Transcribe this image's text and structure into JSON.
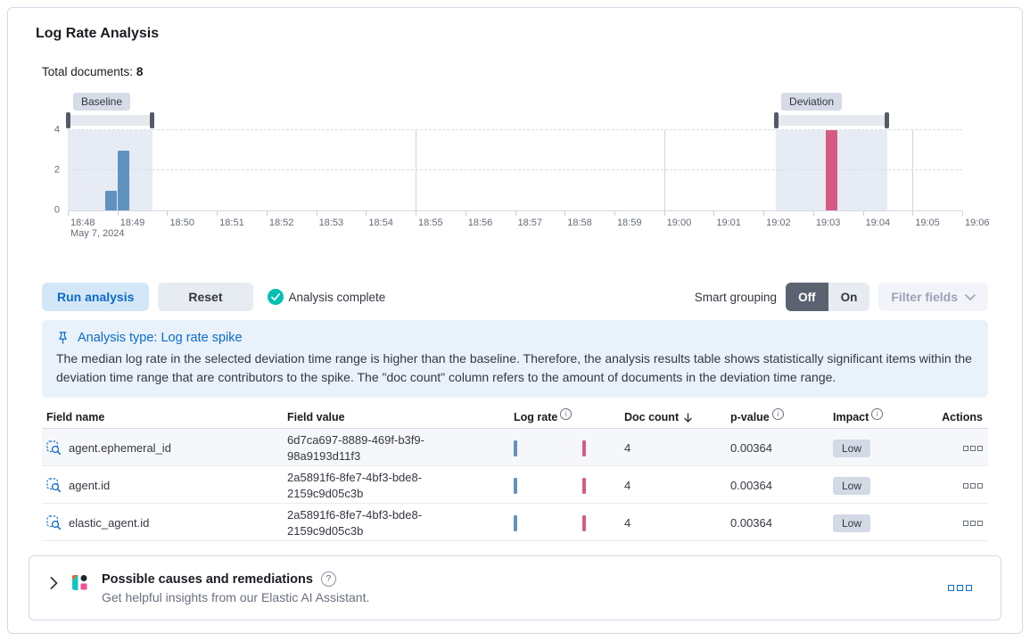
{
  "header": {
    "title": "Log Rate Analysis",
    "total_documents_label": "Total documents:",
    "total_documents_value": "8"
  },
  "chart_data": {
    "type": "bar",
    "title": "Document count histogram with baseline and deviation time range brushes",
    "x_date": "May 7, 2024",
    "x_ticks": [
      "18:48",
      "18:49",
      "18:50",
      "18:51",
      "18:52",
      "18:53",
      "18:54",
      "18:55",
      "18:56",
      "18:57",
      "18:58",
      "18:59",
      "19:00",
      "19:01",
      "19:02",
      "19:03",
      "19:04",
      "19:05",
      "19:06"
    ],
    "y_ticks": [
      0,
      2,
      4
    ],
    "ylim": [
      0,
      4
    ],
    "bucket_seconds": 15,
    "series": [
      {
        "name": "baseline documents",
        "color": "#6092c0",
        "points": [
          {
            "time": "18:48:45",
            "value": 1
          },
          {
            "time": "18:49:00",
            "value": 3
          }
        ]
      },
      {
        "name": "deviation documents",
        "color": "#d65b82",
        "points": [
          {
            "time": "19:03:15",
            "value": 4
          }
        ]
      }
    ],
    "brushes": [
      {
        "label": "Baseline",
        "start": "18:48:00",
        "end": "18:49:42"
      },
      {
        "label": "Deviation",
        "start": "19:02:15",
        "end": "19:04:30"
      }
    ],
    "vertical_gridlines": [
      "18:55",
      "19:00",
      "19:05"
    ],
    "legend": "off"
  },
  "controls": {
    "run_analysis": "Run analysis",
    "reset": "Reset",
    "status": "Analysis complete",
    "smart_grouping_label": "Smart grouping",
    "off": "Off",
    "on": "On",
    "filter_fields": "Filter fields"
  },
  "callout": {
    "title": "Analysis type: Log rate spike",
    "body": "The median log rate in the selected deviation time range is higher than the baseline. Therefore, the analysis results table shows statistically significant items within the deviation time range that are contributors to the spike. The \"doc count\" column refers to the amount of documents in the deviation time range."
  },
  "table": {
    "columns": [
      "Field name",
      "Field value",
      "Log rate",
      "Doc count",
      "p-value",
      "Impact",
      "Actions"
    ],
    "rows": [
      {
        "field_name": "agent.ephemeral_id",
        "field_value": "6d7ca697-8889-469f-b3f9-98a9193d11f3",
        "doc_count": "4",
        "p_value": "0.00364",
        "impact": "Low"
      },
      {
        "field_name": "agent.id",
        "field_value": "2a5891f6-8fe7-4bf3-bde8-2159c9d05c3b",
        "doc_count": "4",
        "p_value": "0.00364",
        "impact": "Low"
      },
      {
        "field_name": "elastic_agent.id",
        "field_value": "2a5891f6-8fe7-4bf3-bde8-2159c9d05c3b",
        "doc_count": "4",
        "p_value": "0.00364",
        "impact": "Low"
      }
    ]
  },
  "footer": {
    "title": "Possible causes and remediations",
    "subtitle": "Get helpful insights from our Elastic AI Assistant."
  },
  "colors": {
    "primary": "#0b6bcb",
    "success_teal": "#00bfb3",
    "bar_baseline_blue": "#6092c0",
    "bar_deviation_pink": "#d65b82",
    "badge_gray": "#d3dae6",
    "callout_bg": "#e9f2fb"
  }
}
